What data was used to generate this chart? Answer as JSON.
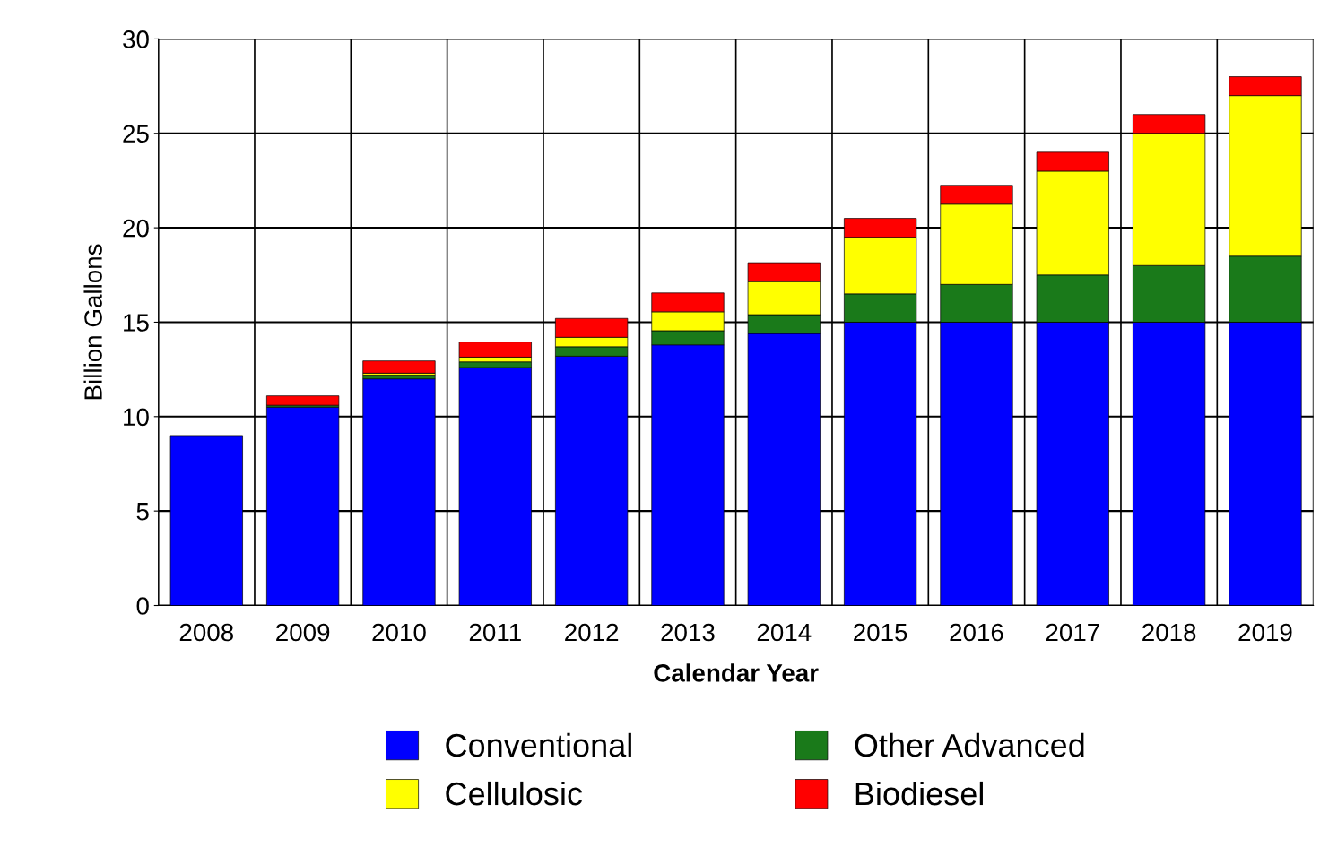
{
  "chart_data": {
    "type": "bar",
    "stacked": true,
    "xlabel": "Calendar Year",
    "ylabel": "Billion Gallons",
    "categories": [
      "2008",
      "2009",
      "2010",
      "2011",
      "2012",
      "2013",
      "2014",
      "2015",
      "2016",
      "2017",
      "2018",
      "2019"
    ],
    "series": [
      {
        "name": "Conventional",
        "color": "#0000ff",
        "values": [
          9.0,
          10.5,
          12.0,
          12.6,
          13.2,
          13.8,
          14.4,
          15.0,
          15.0,
          15.0,
          15.0,
          15.0
        ]
      },
      {
        "name": "Other Advanced",
        "color": "#1a7a1a",
        "values": [
          null,
          0.1,
          0.2,
          0.3,
          0.5,
          0.75,
          1.0,
          1.5,
          2.0,
          2.5,
          3.0,
          3.5
        ]
      },
      {
        "name": "Cellulosic",
        "color": "#ffff00",
        "values": [
          null,
          null,
          0.1,
          0.25,
          0.5,
          1.0,
          1.75,
          3.0,
          4.25,
          5.5,
          7.0,
          8.5
        ]
      },
      {
        "name": "Biodiesel",
        "color": "#ff0000",
        "values": [
          null,
          0.5,
          0.65,
          0.8,
          1.0,
          1.0,
          1.0,
          1.0,
          1.0,
          1.0,
          1.0,
          1.0
        ]
      }
    ],
    "ylim": [
      0,
      30
    ],
    "yticks": [
      0,
      5,
      10,
      15,
      20,
      25,
      30
    ],
    "grid": true,
    "legend": "bottom"
  }
}
